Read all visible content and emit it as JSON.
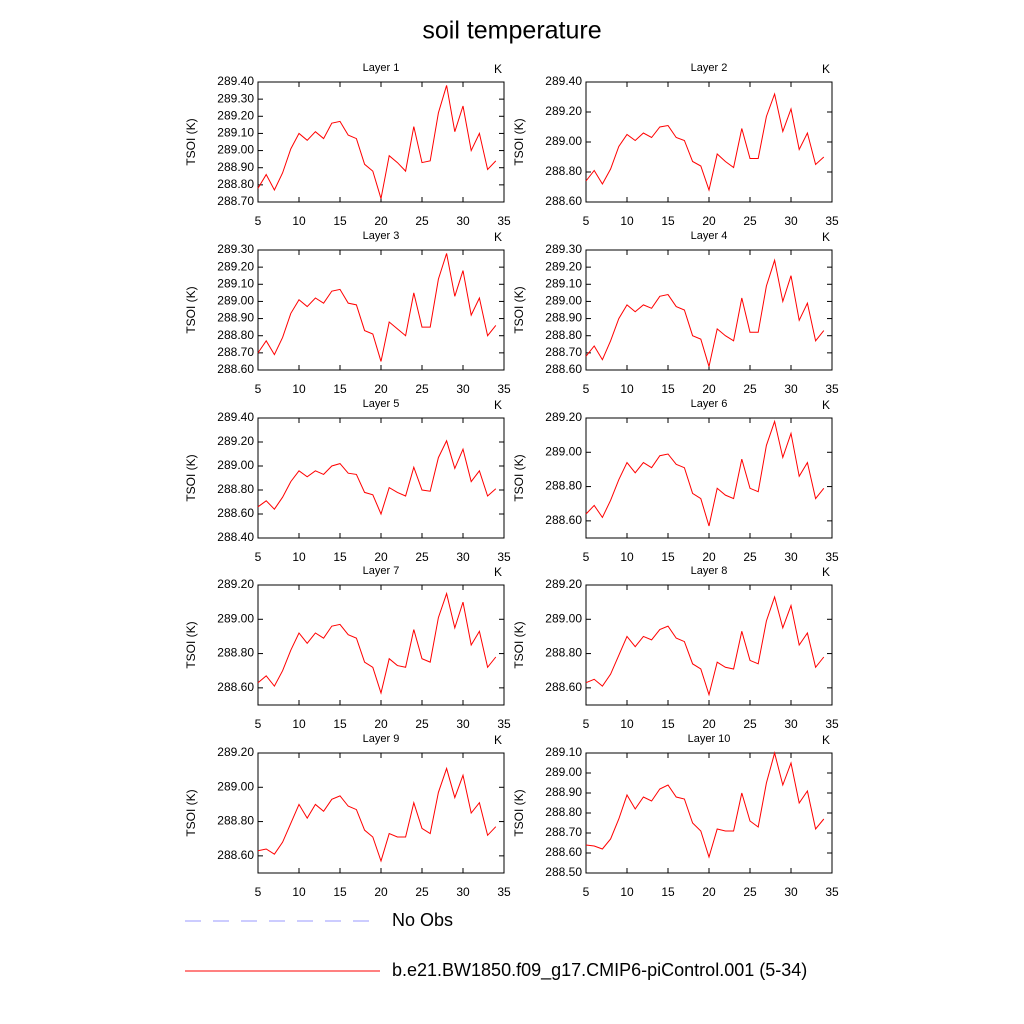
{
  "title": "soil temperature",
  "legend": [
    {
      "name": "No Obs",
      "color": "#9a9aff",
      "dash": true
    },
    {
      "name": "b.e21.BW1850.f09_g17.CMIP6-piControl.001 (5-34)",
      "color": "#ff0000",
      "dash": false
    }
  ],
  "chart_data": [
    {
      "type": "line",
      "title": "Layer 1",
      "units": "K",
      "ylabel": "TSOI  (K)",
      "x": [
        5,
        6,
        7,
        8,
        9,
        10,
        11,
        12,
        13,
        14,
        15,
        16,
        17,
        18,
        19,
        20,
        21,
        22,
        23,
        24,
        25,
        26,
        27,
        28,
        29,
        30,
        31,
        32,
        33,
        34
      ],
      "xlim": [
        5,
        35
      ],
      "xticks": [
        5,
        10,
        15,
        20,
        25,
        30,
        35
      ],
      "ylim": [
        288.7,
        289.4
      ],
      "yticks": [
        {
          "value": 288.7,
          "label": "288.70"
        },
        {
          "value": 288.8,
          "label": "288.80"
        },
        {
          "value": 288.9,
          "label": "288.90"
        },
        {
          "value": 289.0,
          "label": "289.00"
        },
        {
          "value": 289.1,
          "label": "289.10"
        },
        {
          "value": 289.2,
          "label": "289.20"
        },
        {
          "value": 289.3,
          "label": "289.30"
        },
        {
          "value": 289.4,
          "label": "289.40"
        }
      ],
      "series": [
        {
          "color": "#ff0000",
          "values": [
            288.78,
            288.86,
            288.77,
            288.87,
            289.01,
            289.1,
            289.06,
            289.11,
            289.07,
            289.16,
            289.17,
            289.09,
            289.07,
            288.92,
            288.88,
            288.72,
            288.97,
            288.93,
            288.88,
            289.14,
            288.93,
            288.94,
            289.22,
            289.38,
            289.11,
            289.26,
            289.0,
            289.1,
            288.89,
            288.94
          ]
        }
      ]
    },
    {
      "type": "line",
      "title": "Layer 2",
      "units": "K",
      "ylabel": "TSOI  (K)",
      "x": [
        5,
        6,
        7,
        8,
        9,
        10,
        11,
        12,
        13,
        14,
        15,
        16,
        17,
        18,
        19,
        20,
        21,
        22,
        23,
        24,
        25,
        26,
        27,
        28,
        29,
        30,
        31,
        32,
        33,
        34
      ],
      "xlim": [
        5,
        35
      ],
      "xticks": [
        5,
        10,
        15,
        20,
        25,
        30,
        35
      ],
      "ylim": [
        288.6,
        289.4
      ],
      "yticks": [
        {
          "value": 288.6,
          "label": "288.60"
        },
        {
          "value": 288.8,
          "label": "288.80"
        },
        {
          "value": 289.0,
          "label": "289.00"
        },
        {
          "value": 289.2,
          "label": "289.20"
        },
        {
          "value": 289.4,
          "label": "289.40"
        }
      ],
      "series": [
        {
          "color": "#ff0000",
          "values": [
            288.74,
            288.81,
            288.72,
            288.82,
            288.97,
            289.05,
            289.01,
            289.06,
            289.03,
            289.1,
            289.11,
            289.03,
            289.01,
            288.87,
            288.84,
            288.68,
            288.92,
            288.87,
            288.83,
            289.09,
            288.89,
            288.89,
            289.17,
            289.32,
            289.07,
            289.22,
            288.95,
            289.06,
            288.85,
            288.9
          ]
        }
      ]
    },
    {
      "type": "line",
      "title": "Layer 3",
      "units": "K",
      "ylabel": "TSOI  (K)",
      "x": [
        5,
        6,
        7,
        8,
        9,
        10,
        11,
        12,
        13,
        14,
        15,
        16,
        17,
        18,
        19,
        20,
        21,
        22,
        23,
        24,
        25,
        26,
        27,
        28,
        29,
        30,
        31,
        32,
        33,
        34
      ],
      "xlim": [
        5,
        35
      ],
      "xticks": [
        5,
        10,
        15,
        20,
        25,
        30,
        35
      ],
      "ylim": [
        288.6,
        289.3
      ],
      "yticks": [
        {
          "value": 288.6,
          "label": "288.60"
        },
        {
          "value": 288.7,
          "label": "288.70"
        },
        {
          "value": 288.8,
          "label": "288.80"
        },
        {
          "value": 288.9,
          "label": "288.90"
        },
        {
          "value": 289.0,
          "label": "289.00"
        },
        {
          "value": 289.1,
          "label": "289.10"
        },
        {
          "value": 289.2,
          "label": "289.20"
        },
        {
          "value": 289.3,
          "label": "289.30"
        }
      ],
      "series": [
        {
          "color": "#ff0000",
          "values": [
            288.7,
            288.77,
            288.69,
            288.79,
            288.93,
            289.01,
            288.97,
            289.02,
            288.99,
            289.06,
            289.07,
            288.99,
            288.98,
            288.83,
            288.81,
            288.65,
            288.88,
            288.84,
            288.8,
            289.05,
            288.85,
            288.85,
            289.13,
            289.28,
            289.03,
            289.18,
            288.92,
            289.02,
            288.8,
            288.86
          ]
        }
      ]
    },
    {
      "type": "line",
      "title": "Layer 4",
      "units": "K",
      "ylabel": "TSOI  (K)",
      "x": [
        5,
        6,
        7,
        8,
        9,
        10,
        11,
        12,
        13,
        14,
        15,
        16,
        17,
        18,
        19,
        20,
        21,
        22,
        23,
        24,
        25,
        26,
        27,
        28,
        29,
        30,
        31,
        32,
        33,
        34
      ],
      "xlim": [
        5,
        35
      ],
      "xticks": [
        5,
        10,
        15,
        20,
        25,
        30,
        35
      ],
      "ylim": [
        288.6,
        289.3
      ],
      "yticks": [
        {
          "value": 288.6,
          "label": "288.60"
        },
        {
          "value": 288.7,
          "label": "288.70"
        },
        {
          "value": 288.8,
          "label": "288.80"
        },
        {
          "value": 288.9,
          "label": "288.90"
        },
        {
          "value": 289.0,
          "label": "289.00"
        },
        {
          "value": 289.1,
          "label": "289.10"
        },
        {
          "value": 289.2,
          "label": "289.20"
        },
        {
          "value": 289.3,
          "label": "289.30"
        }
      ],
      "series": [
        {
          "color": "#ff0000",
          "values": [
            288.68,
            288.74,
            288.66,
            288.77,
            288.9,
            288.98,
            288.94,
            288.98,
            288.96,
            289.03,
            289.04,
            288.97,
            288.95,
            288.8,
            288.78,
            288.62,
            288.84,
            288.8,
            288.77,
            289.02,
            288.82,
            288.82,
            289.09,
            289.24,
            289.0,
            289.15,
            288.89,
            288.99,
            288.77,
            288.83
          ]
        }
      ]
    },
    {
      "type": "line",
      "title": "Layer 5",
      "units": "K",
      "ylabel": "TSOI  (K)",
      "x": [
        5,
        6,
        7,
        8,
        9,
        10,
        11,
        12,
        13,
        14,
        15,
        16,
        17,
        18,
        19,
        20,
        21,
        22,
        23,
        24,
        25,
        26,
        27,
        28,
        29,
        30,
        31,
        32,
        33,
        34
      ],
      "xlim": [
        5,
        35
      ],
      "xticks": [
        5,
        10,
        15,
        20,
        25,
        30,
        35
      ],
      "ylim": [
        288.4,
        289.4
      ],
      "yticks": [
        {
          "value": 288.4,
          "label": "288.40"
        },
        {
          "value": 288.6,
          "label": "288.60"
        },
        {
          "value": 288.8,
          "label": "288.80"
        },
        {
          "value": 289.0,
          "label": "289.00"
        },
        {
          "value": 289.2,
          "label": "289.20"
        },
        {
          "value": 289.4,
          "label": "289.40"
        }
      ],
      "series": [
        {
          "color": "#ff0000",
          "values": [
            288.66,
            288.71,
            288.64,
            288.74,
            288.87,
            288.96,
            288.91,
            288.96,
            288.93,
            289.0,
            289.02,
            288.94,
            288.93,
            288.78,
            288.76,
            288.6,
            288.82,
            288.78,
            288.75,
            288.99,
            288.8,
            288.79,
            289.07,
            289.21,
            288.98,
            289.14,
            288.87,
            288.96,
            288.75,
            288.81
          ]
        }
      ]
    },
    {
      "type": "line",
      "title": "Layer 6",
      "units": "K",
      "ylabel": "TSOI  (K)",
      "x": [
        5,
        6,
        7,
        8,
        9,
        10,
        11,
        12,
        13,
        14,
        15,
        16,
        17,
        18,
        19,
        20,
        21,
        22,
        23,
        24,
        25,
        26,
        27,
        28,
        29,
        30,
        31,
        32,
        33,
        34
      ],
      "xlim": [
        5,
        35
      ],
      "xticks": [
        5,
        10,
        15,
        20,
        25,
        30,
        35
      ],
      "ylim": [
        288.5,
        289.2
      ],
      "yticks": [
        {
          "value": 288.6,
          "label": "288.60"
        },
        {
          "value": 288.8,
          "label": "288.80"
        },
        {
          "value": 289.0,
          "label": "289.00"
        },
        {
          "value": 289.2,
          "label": "289.20"
        }
      ],
      "series": [
        {
          "color": "#ff0000",
          "values": [
            288.64,
            288.69,
            288.62,
            288.72,
            288.84,
            288.94,
            288.88,
            288.94,
            288.91,
            288.98,
            288.99,
            288.93,
            288.91,
            288.76,
            288.73,
            288.57,
            288.79,
            288.75,
            288.73,
            288.96,
            288.79,
            288.77,
            289.04,
            289.18,
            288.97,
            289.11,
            288.86,
            288.94,
            288.73,
            288.79
          ]
        }
      ]
    },
    {
      "type": "line",
      "title": "Layer 7",
      "units": "K",
      "ylabel": "TSOI  (K)",
      "x": [
        5,
        6,
        7,
        8,
        9,
        10,
        11,
        12,
        13,
        14,
        15,
        16,
        17,
        18,
        19,
        20,
        21,
        22,
        23,
        24,
        25,
        26,
        27,
        28,
        29,
        30,
        31,
        32,
        33,
        34
      ],
      "xlim": [
        5,
        35
      ],
      "xticks": [
        5,
        10,
        15,
        20,
        25,
        30,
        35
      ],
      "ylim": [
        288.5,
        289.2
      ],
      "yticks": [
        {
          "value": 288.6,
          "label": "288.60"
        },
        {
          "value": 288.8,
          "label": "288.80"
        },
        {
          "value": 289.0,
          "label": "289.00"
        },
        {
          "value": 289.2,
          "label": "289.20"
        }
      ],
      "series": [
        {
          "color": "#ff0000",
          "values": [
            288.63,
            288.67,
            288.61,
            288.7,
            288.82,
            288.92,
            288.86,
            288.92,
            288.89,
            288.96,
            288.97,
            288.91,
            288.89,
            288.75,
            288.72,
            288.57,
            288.77,
            288.73,
            288.72,
            288.94,
            288.77,
            288.75,
            289.01,
            289.15,
            288.95,
            289.1,
            288.85,
            288.93,
            288.72,
            288.78
          ]
        }
      ]
    },
    {
      "type": "line",
      "title": "Layer 8",
      "units": "K",
      "ylabel": "TSOI  (K)",
      "x": [
        5,
        6,
        7,
        8,
        9,
        10,
        11,
        12,
        13,
        14,
        15,
        16,
        17,
        18,
        19,
        20,
        21,
        22,
        23,
        24,
        25,
        26,
        27,
        28,
        29,
        30,
        31,
        32,
        33,
        34
      ],
      "xlim": [
        5,
        35
      ],
      "xticks": [
        5,
        10,
        15,
        20,
        25,
        30,
        35
      ],
      "ylim": [
        288.5,
        289.2
      ],
      "yticks": [
        {
          "value": 288.6,
          "label": "288.60"
        },
        {
          "value": 288.8,
          "label": "288.80"
        },
        {
          "value": 289.0,
          "label": "289.00"
        },
        {
          "value": 289.2,
          "label": "289.20"
        }
      ],
      "series": [
        {
          "color": "#ff0000",
          "values": [
            288.63,
            288.65,
            288.61,
            288.68,
            288.79,
            288.9,
            288.84,
            288.9,
            288.88,
            288.94,
            288.96,
            288.89,
            288.87,
            288.74,
            288.71,
            288.56,
            288.75,
            288.72,
            288.71,
            288.93,
            288.76,
            288.74,
            288.99,
            289.13,
            288.95,
            289.08,
            288.85,
            288.92,
            288.72,
            288.78
          ]
        }
      ]
    },
    {
      "type": "line",
      "title": "Layer 9",
      "units": "K",
      "ylabel": "TSOI  (K)",
      "x": [
        5,
        6,
        7,
        8,
        9,
        10,
        11,
        12,
        13,
        14,
        15,
        16,
        17,
        18,
        19,
        20,
        21,
        22,
        23,
        24,
        25,
        26,
        27,
        28,
        29,
        30,
        31,
        32,
        33,
        34
      ],
      "xlim": [
        5,
        35
      ],
      "xticks": [
        5,
        10,
        15,
        20,
        25,
        30,
        35
      ],
      "ylim": [
        288.5,
        289.2
      ],
      "yticks": [
        {
          "value": 288.6,
          "label": "288.60"
        },
        {
          "value": 288.8,
          "label": "288.80"
        },
        {
          "value": 289.0,
          "label": "289.00"
        },
        {
          "value": 289.2,
          "label": "289.20"
        }
      ],
      "series": [
        {
          "color": "#ff0000",
          "values": [
            288.63,
            288.64,
            288.61,
            288.68,
            288.79,
            288.9,
            288.82,
            288.9,
            288.86,
            288.93,
            288.95,
            288.89,
            288.87,
            288.75,
            288.71,
            288.57,
            288.73,
            288.71,
            288.71,
            288.91,
            288.76,
            288.73,
            288.97,
            289.11,
            288.94,
            289.07,
            288.85,
            288.91,
            288.72,
            288.77
          ]
        }
      ]
    },
    {
      "type": "line",
      "title": "Layer 10",
      "units": "K",
      "ylabel": "TSOI  (K)",
      "x": [
        5,
        6,
        7,
        8,
        9,
        10,
        11,
        12,
        13,
        14,
        15,
        16,
        17,
        18,
        19,
        20,
        21,
        22,
        23,
        24,
        25,
        26,
        27,
        28,
        29,
        30,
        31,
        32,
        33,
        34
      ],
      "xlim": [
        5,
        35
      ],
      "xticks": [
        5,
        10,
        15,
        20,
        25,
        30,
        35
      ],
      "ylim": [
        288.5,
        289.1
      ],
      "yticks": [
        {
          "value": 288.5,
          "label": "288.50"
        },
        {
          "value": 288.6,
          "label": "288.60"
        },
        {
          "value": 288.7,
          "label": "288.70"
        },
        {
          "value": 288.8,
          "label": "288.80"
        },
        {
          "value": 288.9,
          "label": "288.90"
        },
        {
          "value": 289.0,
          "label": "289.00"
        },
        {
          "value": 289.1,
          "label": "289.10"
        }
      ],
      "series": [
        {
          "color": "#ff0000",
          "values": [
            288.64,
            288.635,
            288.62,
            288.67,
            288.77,
            288.89,
            288.82,
            288.88,
            288.86,
            288.92,
            288.94,
            288.88,
            288.87,
            288.75,
            288.71,
            288.58,
            288.72,
            288.71,
            288.71,
            288.9,
            288.76,
            288.73,
            288.95,
            289.1,
            288.94,
            289.05,
            288.85,
            288.91,
            288.72,
            288.77
          ]
        }
      ]
    }
  ]
}
